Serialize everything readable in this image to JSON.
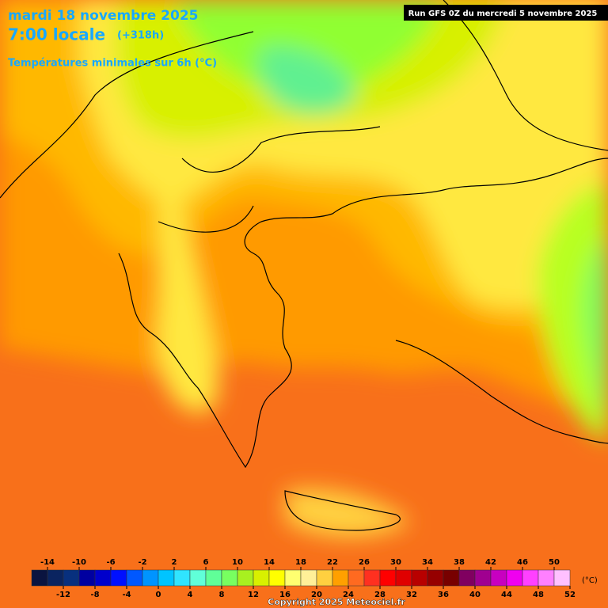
{
  "header": {
    "date": "mardi 18 novembre 2025",
    "time": "7:00 locale",
    "lead": "(+318h)",
    "subtitle": "Températures minimales sur 6h (°C)",
    "run": "Run GFS 0Z du mercredi 5 novembre 2025"
  },
  "legend": {
    "min": -16,
    "max": 52,
    "unit": "(°C)",
    "top_ticks": [
      -14,
      -10,
      -6,
      -2,
      2,
      6,
      10,
      14,
      18,
      22,
      26,
      30,
      34,
      38,
      42,
      46,
      50
    ],
    "bottom_ticks": [
      -12,
      -8,
      -4,
      0,
      4,
      8,
      12,
      16,
      20,
      24,
      28,
      32,
      36,
      40,
      44,
      48,
      52
    ],
    "colors": [
      "#0a1440",
      "#0a2460",
      "#08307e",
      "#0000a0",
      "#0000cc",
      "#0010ff",
      "#0058ff",
      "#0094ff",
      "#00c4ff",
      "#30e4ff",
      "#60ffd8",
      "#60ff98",
      "#78ff60",
      "#a8f020",
      "#d8f000",
      "#ffff00",
      "#ffff70",
      "#fff098",
      "#ffd040",
      "#ffa000",
      "#ff6a20",
      "#ff3020",
      "#ff0000",
      "#e00000",
      "#b80000",
      "#960000",
      "#780000",
      "#800060",
      "#a00090",
      "#c800c0",
      "#f000f0",
      "#ff40ff",
      "#ff80ff",
      "#ffc0ff"
    ]
  },
  "footer": {
    "copyright": "Copyright 2025 Meteociel.fr"
  }
}
